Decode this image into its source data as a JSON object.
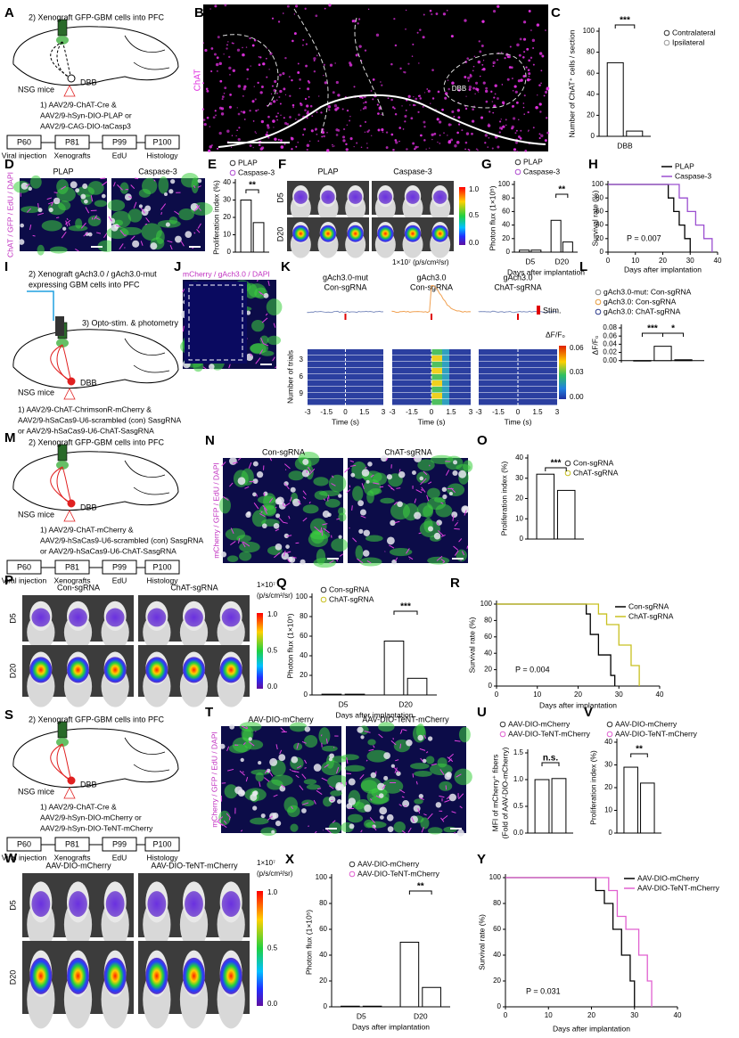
{
  "chart_data": [
    {
      "type": "bar",
      "letter": "C",
      "ylabel": "Number of ChAT⁺ cells / section",
      "categories": [
        "DBB"
      ],
      "series": [
        {
          "name": "Contralateral",
          "color": "#333333",
          "values": [
            70
          ]
        },
        {
          "name": "Ipsilateral",
          "color": "#999999",
          "values": [
            5
          ]
        }
      ],
      "ylim": [
        0,
        100
      ],
      "yticks": [
        0,
        20,
        40,
        60,
        80,
        100
      ],
      "significance": [
        "***"
      ]
    },
    {
      "type": "bar",
      "letter": "E",
      "ylabel": "Proliferation index (%)",
      "categories": [
        null
      ],
      "series": [
        {
          "name": "PLAP",
          "color": "#333333",
          "values": [
            30
          ]
        },
        {
          "name": "Caspase-3",
          "color": "#b04cd0",
          "values": [
            17
          ]
        }
      ],
      "ylim": [
        0,
        40
      ],
      "yticks": [
        0,
        10,
        20,
        30,
        40
      ],
      "significance": [
        "**"
      ]
    },
    {
      "type": "bar",
      "letter": "G",
      "ylabel": "Photon flux (1×10⁵)",
      "xlabel": "Days after implantation",
      "categories": [
        "D5",
        "D20"
      ],
      "series": [
        {
          "name": "PLAP",
          "color": "#333333",
          "values": [
            3,
            47
          ]
        },
        {
          "name": "Caspase-3",
          "color": "#b04cd0",
          "values": [
            3,
            15
          ]
        }
      ],
      "ylim": [
        0,
        100
      ],
      "yticks": [
        0,
        20,
        40,
        60,
        80,
        100
      ],
      "significance": [
        "**"
      ]
    },
    {
      "type": "line",
      "letter": "H",
      "ylabel": "Survival rate (%)",
      "xlabel": "Days after implantation",
      "annotation": "P = 0.007",
      "series": [
        {
          "name": "PLAP",
          "color": "#000000",
          "x": [
            0,
            22,
            22,
            24,
            24,
            26,
            26,
            28,
            28,
            30,
            30
          ],
          "values": [
            100,
            100,
            80,
            80,
            60,
            60,
            40,
            40,
            20,
            20,
            0
          ]
        },
        {
          "name": "Caspase-3",
          "color": "#9b4fd0",
          "x": [
            0,
            26,
            26,
            29,
            29,
            32,
            32,
            35,
            35,
            38,
            38
          ],
          "values": [
            100,
            100,
            80,
            80,
            60,
            60,
            40,
            40,
            20,
            20,
            0
          ]
        }
      ],
      "xlim": [
        0,
        40
      ],
      "xticks": [
        0,
        10,
        20,
        30,
        40
      ],
      "ylim": [
        0,
        100
      ],
      "yticks": [
        0,
        20,
        40,
        60,
        80,
        100
      ]
    },
    {
      "type": "bar",
      "letter": "L",
      "ylabel": "ΔF/F₀",
      "categories": [
        null
      ],
      "series": [
        {
          "name": "gAch3.0-mut: Con-sgRNA",
          "color": "#888888",
          "values": [
            0
          ]
        },
        {
          "name": "gAch3.0: Con-sgRNA",
          "color": "#e69a3c",
          "values": [
            0.035
          ]
        },
        {
          "name": "gAch3.0: ChAT-sgRNA",
          "color": "#2b3a8c",
          "values": [
            0.002
          ]
        }
      ],
      "ylim": [
        -0.005,
        0.08
      ],
      "yticks": [
        {
          "value": 0,
          "label": "0.00"
        },
        {
          "value": 0.02,
          "label": "0.02"
        },
        {
          "value": 0.04,
          "label": "0.04"
        },
        {
          "value": 0.06,
          "label": "0.06"
        },
        {
          "value": 0.08,
          "label": "0.08"
        }
      ],
      "significance": [
        "***",
        "*"
      ]
    },
    {
      "type": "bar",
      "letter": "O",
      "ylabel": "Proliferation index (%)",
      "categories": [
        null
      ],
      "series": [
        {
          "name": "Con-sgRNA",
          "color": "#333333",
          "values": [
            32
          ]
        },
        {
          "name": "ChAT-sgRNA",
          "color": "#c8c020",
          "values": [
            24
          ]
        }
      ],
      "ylim": [
        0,
        40
      ],
      "yticks": [
        0,
        10,
        20,
        30,
        40
      ],
      "significance": [
        "***"
      ]
    },
    {
      "type": "bar",
      "letter": "Q",
      "ylabel": "Photon flux (1×10⁵)",
      "xlabel": "Days after implantation",
      "categories": [
        "D5",
        "D20"
      ],
      "series": [
        {
          "name": "Con-sgRNA",
          "color": "#333333",
          "values": [
            0.8,
            55
          ]
        },
        {
          "name": "ChAT-sgRNA",
          "color": "#c8c020",
          "values": [
            0.8,
            17
          ]
        }
      ],
      "ylim": [
        0,
        100
      ],
      "yticks": [
        0,
        20,
        40,
        60,
        80,
        100
      ],
      "significance": [
        "***"
      ]
    },
    {
      "type": "line",
      "letter": "R",
      "ylabel": "Survival rate (%)",
      "xlabel": "Days after implantation",
      "annotation": "P = 0.004",
      "series": [
        {
          "name": "Con-sgRNA",
          "color": "#000000",
          "x": [
            0,
            22,
            22,
            23,
            23,
            25,
            25,
            28,
            28,
            29,
            29
          ],
          "values": [
            100,
            100,
            88,
            88,
            63,
            63,
            38,
            38,
            13,
            13,
            0
          ]
        },
        {
          "name": "ChAT-sgRNA",
          "color": "#c8c020",
          "x": [
            0,
            25,
            25,
            27,
            27,
            30,
            30,
            33,
            33,
            35,
            35
          ],
          "values": [
            100,
            100,
            88,
            88,
            75,
            75,
            50,
            50,
            25,
            25,
            0
          ]
        }
      ],
      "xlim": [
        0,
        40
      ],
      "xticks": [
        0,
        10,
        20,
        30,
        40
      ],
      "ylim": [
        0,
        100
      ],
      "yticks": [
        0,
        20,
        40,
        60,
        80,
        100
      ]
    },
    {
      "type": "bar",
      "letter": "U",
      "ylabel": [
        "MFI of mCherry⁺ fibers",
        "(Fold of AAV-DIO-mCherry)"
      ],
      "categories": [
        null
      ],
      "series": [
        {
          "name": "AAV-DIO-mCherry",
          "color": "#333333",
          "values": [
            1.0
          ]
        },
        {
          "name": "AAV-DIO-TeNT-mCherry",
          "color": "#e060d0",
          "values": [
            1.02
          ]
        }
      ],
      "ylim": [
        0,
        1.5
      ],
      "yticks": [
        {
          "value": 0,
          "label": "0.0"
        },
        0.5,
        {
          "value": 1,
          "label": "1.0"
        },
        1.5
      ],
      "significance": [
        "n.s."
      ]
    },
    {
      "type": "bar",
      "letter": "V",
      "ylabel": "Proliferation index (%)",
      "categories": [
        null
      ],
      "series": [
        {
          "name": "AAV-DIO-mCherry",
          "color": "#333333",
          "values": [
            29
          ]
        },
        {
          "name": "AAV-DIO-TeNT-mCherry",
          "color": "#e060d0",
          "values": [
            22
          ]
        }
      ],
      "ylim": [
        0,
        40
      ],
      "yticks": [
        0,
        10,
        20,
        30,
        40
      ],
      "significance": [
        "**"
      ]
    },
    {
      "type": "bar",
      "letter": "X",
      "ylabel": "Photon flux (1×10⁵)",
      "xlabel": "Days after implantation",
      "categories": [
        "D5",
        "D20"
      ],
      "series": [
        {
          "name": "AAV-DIO-mCherry",
          "color": "#333333",
          "values": [
            0.5,
            50
          ]
        },
        {
          "name": "AAV-DIO-TeNT-mCherry",
          "color": "#e060d0",
          "values": [
            0.5,
            15
          ]
        }
      ],
      "ylim": [
        0,
        100
      ],
      "yticks": [
        0,
        20,
        40,
        60,
        80,
        100
      ],
      "significance": [
        "**"
      ]
    },
    {
      "type": "line",
      "letter": "Y",
      "ylabel": "Survival rate (%)",
      "xlabel": "Days after implantation",
      "annotation": "P = 0.031",
      "series": [
        {
          "name": "AAV-DIO-mCherry",
          "color": "#000000",
          "x": [
            0,
            21,
            21,
            23,
            23,
            25,
            25,
            27,
            27,
            29,
            29,
            30,
            30
          ],
          "values": [
            100,
            100,
            90,
            90,
            80,
            80,
            60,
            60,
            40,
            40,
            20,
            20,
            0
          ]
        },
        {
          "name": "AAV-DIO-TeNT-mCherry",
          "color": "#e060d0",
          "x": [
            0,
            24,
            24,
            26,
            26,
            28,
            28,
            31,
            31,
            33,
            33,
            34,
            34
          ],
          "values": [
            100,
            100,
            90,
            90,
            70,
            70,
            60,
            60,
            40,
            40,
            20,
            20,
            0
          ]
        }
      ],
      "xlim": [
        0,
        40
      ],
      "xticks": [
        0,
        10,
        20,
        30,
        40
      ],
      "ylim": [
        0,
        100
      ],
      "yticks": [
        0,
        20,
        40,
        60,
        80,
        100
      ]
    }
  ],
  "panels": {
    "A": {
      "letter": "A",
      "step": "2) Xenograft GFP-GBM cells into PFC",
      "mice": "NSG mice",
      "region": "DBB",
      "injection": [
        "1) AAV2/9-ChAT-Cre &",
        "AAV2/9-hSyn-DIO-PLAP or",
        "AAV2/9-CAG-DIO-taCasp3"
      ],
      "timeline": [
        "P60",
        "P81",
        "P99",
        "P100"
      ],
      "events": [
        "Viral injection",
        "Xenografts",
        "EdU",
        "Histology"
      ]
    },
    "B": {
      "letter": "B",
      "stain": "ChAT",
      "region": "DBB"
    },
    "D": {
      "letter": "D",
      "columns": [
        "PLAP",
        "Caspase-3"
      ],
      "stain": "ChAT / GFP / EdU / DAPI"
    },
    "F": {
      "letter": "F",
      "columns": [
        "PLAP",
        "Caspase-3"
      ],
      "rows": [
        "D5",
        "D20"
      ],
      "colorbar": [
        "1.0",
        "0.5",
        "0.0"
      ],
      "unit": "1×10⁷ (p/s/cm²/sr)"
    },
    "I": {
      "letter": "I",
      "step": [
        "2) Xenograft gAch3.0 / gAch3.0-mut",
        "expressing GBM cells into PFC"
      ],
      "stim": "3) Opto-stim. & photometry",
      "mice": "NSG mice",
      "region": "DBB",
      "injection": [
        "1) AAV2/9-ChAT-ChrimsonR-mCherry &",
        "AAV2/9-hSaCas9-U6-scrambled (con) SasgRNA",
        "or AAV2/9-hSaCas9-U6-ChAT-SasgRNA"
      ]
    },
    "J": {
      "letter": "J",
      "stain": "mCherry / gAch3.0 / DAPI"
    },
    "K": {
      "letter": "K",
      "columns": [
        [
          "gAch3.0-mut",
          "Con-sgRNA"
        ],
        [
          "gAch3.0",
          "Con-sgRNA"
        ],
        [
          "gAch3.0",
          "ChAT-sgRNA"
        ]
      ],
      "stim": "Stim.",
      "signal": "ΔF/F₀",
      "ylabel": "Number of trials",
      "yticks": [
        "3",
        "6",
        "9"
      ],
      "xticks": [
        "-3",
        "-1.5",
        "0",
        "1.5",
        "3"
      ],
      "xlabel": "Time (s)",
      "colorbar": [
        "0.06",
        "0.03",
        "0.00"
      ]
    },
    "M": {
      "letter": "M",
      "step": "2) Xenograft GFP-GBM cells into PFC",
      "mice": "NSG mice",
      "region": "DBB",
      "injection": [
        "1) AAV2/9-ChAT-mCherry &",
        "AAV2/9-hSaCas9-U6-scrambled (con) SasgRNA",
        "or AAV2/9-hSaCas9-U6-ChAT-SasgRNA"
      ],
      "timeline": [
        "P60",
        "P81",
        "P99",
        "P100"
      ],
      "events": [
        "Viral injection",
        "Xenografts",
        "EdU",
        "Histology"
      ]
    },
    "N": {
      "letter": "N",
      "columns": [
        "Con-sgRNA",
        "ChAT-sgRNA"
      ],
      "stain": "mCherry / GFP / EdU / DAPI"
    },
    "P": {
      "letter": "P",
      "columns": [
        "Con-sgRNA",
        "ChAT-sgRNA"
      ],
      "rows": [
        "D5",
        "D20"
      ],
      "colorbar": [
        "1.0",
        "0.5",
        "0.0"
      ],
      "unit": [
        "1×10⁷",
        "(p/s/cm²/sr)"
      ]
    },
    "S": {
      "letter": "S",
      "step": "2) Xenograft GFP-GBM cells into PFC",
      "mice": "NSG mice",
      "region": "DBB",
      "injection": [
        "1) AAV2/9-ChAT-Cre &",
        "AAV2/9-hSyn-DIO-mCherry or",
        "AAV2/9-hSyn-DIO-TeNT-mCherry"
      ],
      "timeline": [
        "P60",
        "P81",
        "P99",
        "P100"
      ],
      "events": [
        "Viral injection",
        "Xenografts",
        "EdU",
        "Histology"
      ]
    },
    "T": {
      "letter": "T",
      "columns": [
        "AAV-DIO-mCherry",
        "AAV-DIO-TeNT-mCherry"
      ],
      "stain": "mCherry / GFP / EdU / DAPI"
    },
    "W": {
      "letter": "W",
      "columns": [
        "AAV-DIO-mCherry",
        "AAV-DIO-TeNT-mCherry"
      ],
      "rows": [
        "D5",
        "D20"
      ],
      "colorbar": [
        "1.0",
        "0.5",
        "0.0"
      ],
      "unit": [
        "1×10⁷",
        "(p/s/cm²/sr)"
      ]
    }
  }
}
